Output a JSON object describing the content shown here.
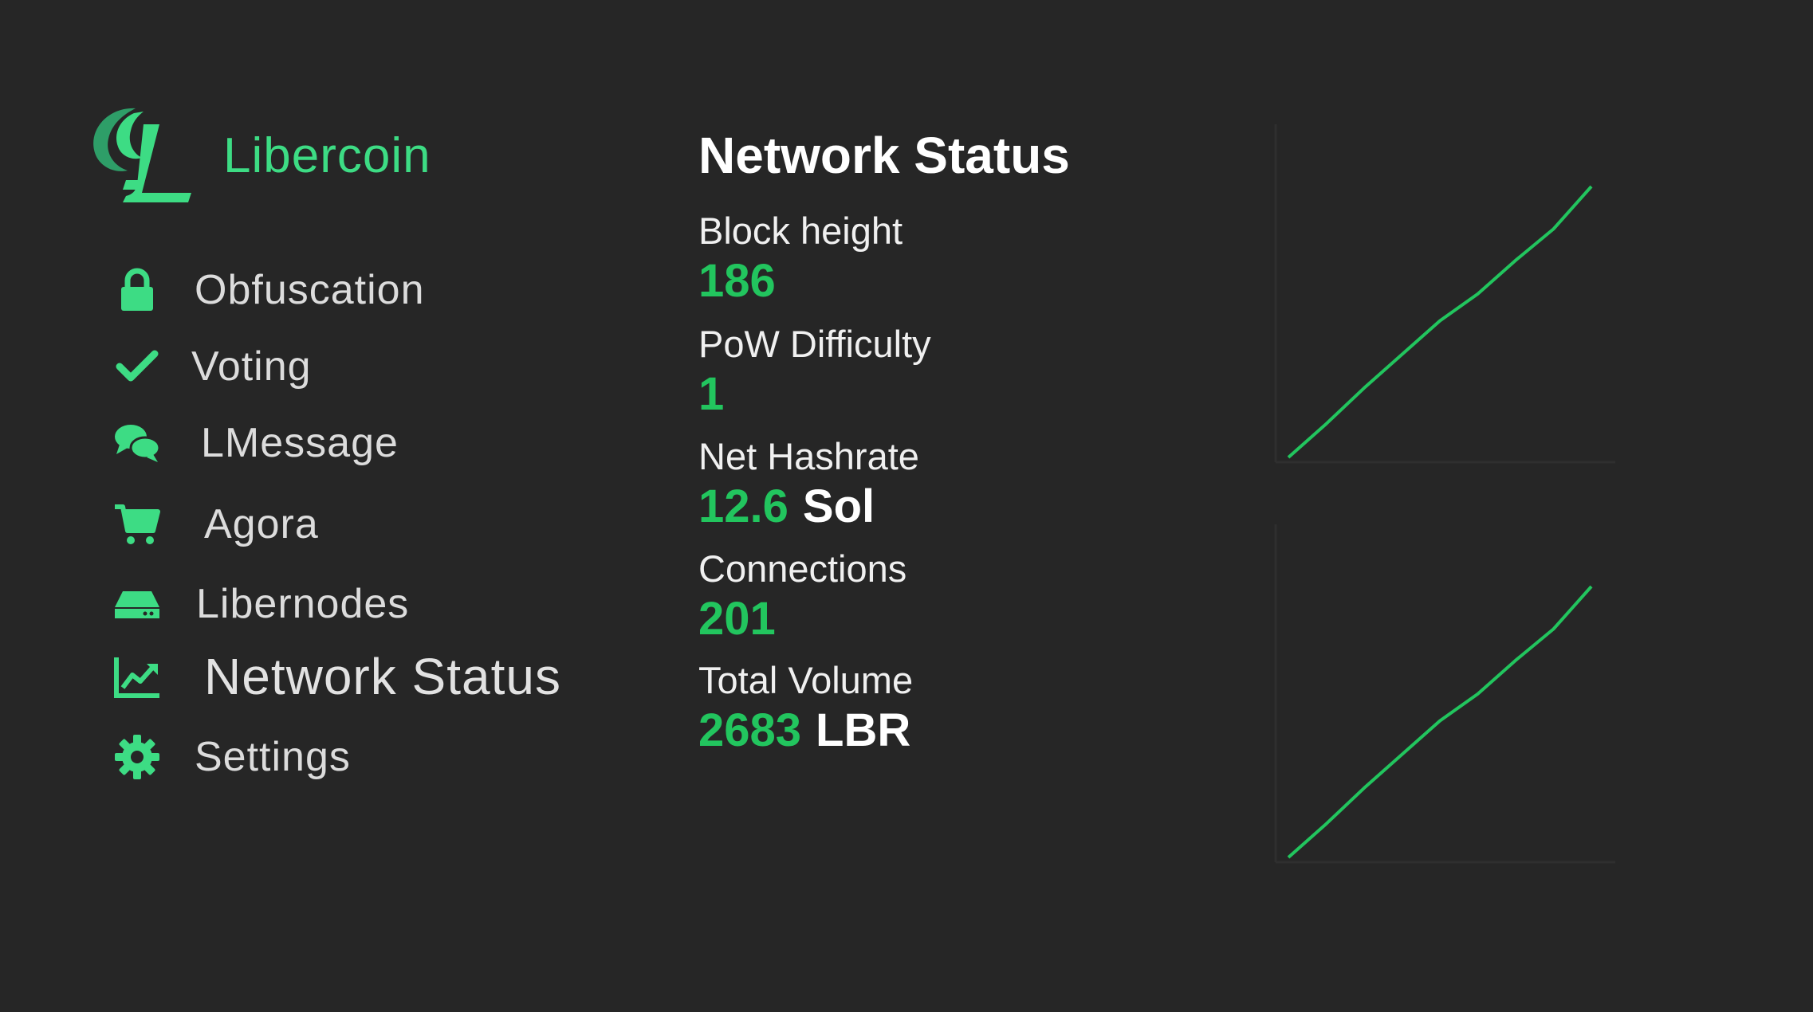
{
  "brand": {
    "name": "Libercoin",
    "logo_icon": "libercoin-logo",
    "accent_color": "#3ddc84"
  },
  "sidebar": {
    "items": [
      {
        "label": "Obfuscation",
        "icon": "lock-icon"
      },
      {
        "label": "Voting",
        "icon": "check-icon"
      },
      {
        "label": "LMessage",
        "icon": "chat-bubbles-icon"
      },
      {
        "label": "Agora",
        "icon": "cart-icon"
      },
      {
        "label": "Libernodes",
        "icon": "hdd-icon"
      },
      {
        "label": "Network Status",
        "icon": "line-chart-icon",
        "active": true
      },
      {
        "label": "Settings",
        "icon": "gear-icon"
      }
    ]
  },
  "main": {
    "title": "Network Status",
    "stats": [
      {
        "label": "Block height",
        "value": "186",
        "unit": ""
      },
      {
        "label": "PoW Difficulty",
        "value": "1",
        "unit": ""
      },
      {
        "label": "Net Hashrate",
        "value": "12.6",
        "unit": "Sol"
      },
      {
        "label": "Connections",
        "value": "201",
        "unit": ""
      },
      {
        "label": "Total Volume",
        "value": "2683",
        "unit": "LBR"
      }
    ],
    "value_color": "#22c55e"
  },
  "charts": [
    {
      "type": "line",
      "series_color": "#22c55e",
      "x": [
        0,
        1,
        2,
        3,
        4,
        5,
        6,
        7,
        8
      ],
      "y": [
        0,
        0.15,
        0.31,
        0.46,
        0.61,
        0.73,
        0.88,
        1.02,
        1.21
      ]
    },
    {
      "type": "line",
      "series_color": "#22c55e",
      "x": [
        0,
        1,
        2,
        3,
        4,
        5,
        6,
        7,
        8
      ],
      "y": [
        0,
        0.15,
        0.31,
        0.46,
        0.61,
        0.73,
        0.88,
        1.02,
        1.21
      ]
    }
  ]
}
